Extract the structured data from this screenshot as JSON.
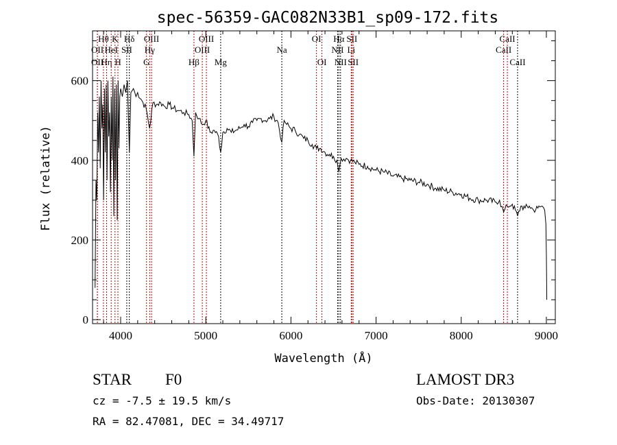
{
  "chart_data": {
    "type": "line",
    "title": "spec-56359-GAC082N33B1_sp09-172.fits",
    "xlabel": "Wavelength (Å)",
    "ylabel": "Flux (relative)",
    "xlim": [
      3670,
      9105
    ],
    "ylim": [
      -10,
      725
    ],
    "xticks": [
      4000,
      5000,
      6000,
      7000,
      8000,
      9000
    ],
    "yticks": [
      0,
      200,
      400,
      600
    ],
    "grid": false,
    "series": [
      {
        "name": "spectrum",
        "x": [
          3700,
          3710,
          3720,
          3730,
          3740,
          3750,
          3760,
          3770,
          3780,
          3790,
          3800,
          3810,
          3820,
          3830,
          3840,
          3850,
          3860,
          3870,
          3880,
          3890,
          3900,
          3910,
          3920,
          3930,
          3940,
          3950,
          3960,
          3970,
          3980,
          3990,
          4000,
          4020,
          4040,
          4060,
          4080,
          4102,
          4120,
          4150,
          4180,
          4200,
          4250,
          4300,
          4340,
          4380,
          4420,
          4470,
          4520,
          4570,
          4620,
          4680,
          4740,
          4800,
          4840,
          4861,
          4880,
          4920,
          4960,
          5000,
          5050,
          5100,
          5150,
          5175,
          5200,
          5250,
          5300,
          5350,
          5400,
          5450,
          5500,
          5550,
          5600,
          5650,
          5700,
          5750,
          5800,
          5850,
          5893,
          5920,
          5950,
          6000,
          6050,
          6100,
          6150,
          6200,
          6250,
          6300,
          6350,
          6400,
          6450,
          6500,
          6540,
          6563,
          6590,
          6650,
          6700,
          6750,
          6800,
          6900,
          7000,
          7100,
          7200,
          7300,
          7400,
          7500,
          7600,
          7700,
          7800,
          7900,
          8000,
          8100,
          8200,
          8300,
          8400,
          8450,
          8498,
          8542,
          8600,
          8662,
          8700,
          8750,
          8800,
          8850,
          8900,
          8950,
          8980,
          8995,
          9000,
          9005
        ],
        "y": [
          80,
          350,
          300,
          520,
          420,
          560,
          380,
          600,
          480,
          540,
          300,
          580,
          420,
          590,
          350,
          600,
          460,
          520,
          320,
          560,
          400,
          610,
          260,
          580,
          350,
          590,
          250,
          600,
          430,
          560,
          580,
          560,
          590,
          570,
          600,
          420,
          570,
          580,
          560,
          570,
          550,
          530,
          480,
          545,
          540,
          545,
          535,
          540,
          530,
          525,
          520,
          515,
          500,
          410,
          520,
          505,
          490,
          500,
          470,
          475,
          460,
          420,
          470,
          480,
          470,
          475,
          480,
          490,
          485,
          495,
          500,
          505,
          500,
          505,
          510,
          495,
          445,
          500,
          490,
          480,
          475,
          465,
          455,
          450,
          440,
          430,
          430,
          420,
          415,
          410,
          400,
          370,
          405,
          405,
          400,
          395,
          390,
          385,
          375,
          370,
          360,
          355,
          350,
          345,
          340,
          330,
          325,
          320,
          315,
          305,
          300,
          300,
          295,
          300,
          270,
          285,
          290,
          260,
          285,
          280,
          285,
          275,
          280,
          285,
          275,
          240,
          160,
          50
        ]
      }
    ],
    "lines": [
      {
        "label": "OII",
        "wl": 3727,
        "row": 2,
        "color": "#c00000"
      },
      {
        "label": "OII",
        "wl": 3727,
        "row": 3,
        "color": "#c00000"
      },
      {
        "label": "Hθ",
        "wl": 3798,
        "row": 1,
        "color": "#c00000"
      },
      {
        "label": "Hη",
        "wl": 3835,
        "row": 3,
        "color": "#c00000"
      },
      {
        "label": "HeI",
        "wl": 3889,
        "row": 2,
        "color": "#c00000"
      },
      {
        "label": "K",
        "wl": 3934,
        "row": 1,
        "color": "#c00000"
      },
      {
        "label": "H",
        "wl": 3968,
        "row": 3,
        "color": "#c00000"
      },
      {
        "label": "SII",
        "wl": 4072,
        "row": 2,
        "color": "#000000"
      },
      {
        "label": "Hδ",
        "wl": 4102,
        "row": 1,
        "color": "#000000"
      },
      {
        "label": "G",
        "wl": 4304,
        "row": 3,
        "color": "#c00000"
      },
      {
        "label": "Hγ",
        "wl": 4341,
        "row": 2,
        "color": "#c00000"
      },
      {
        "label": "OIII",
        "wl": 4363,
        "row": 1,
        "color": "#c00000"
      },
      {
        "label": "Hβ",
        "wl": 4861,
        "row": 3,
        "color": "#c00000"
      },
      {
        "label": "OIII",
        "wl": 4959,
        "row": 2,
        "color": "#c00000"
      },
      {
        "label": "OIII",
        "wl": 5007,
        "row": 1,
        "color": "#c00000"
      },
      {
        "label": "Mg",
        "wl": 5175,
        "row": 3,
        "color": "#000000"
      },
      {
        "label": "Na",
        "wl": 5893,
        "row": 2,
        "color": "#000000"
      },
      {
        "label": "OI",
        "wl": 6300,
        "row": 1,
        "color": "#c00000"
      },
      {
        "label": "OI",
        "wl": 6364,
        "row": 3,
        "color": "#c00000"
      },
      {
        "label": "NII",
        "wl": 6548,
        "row": 2,
        "color": "#000000"
      },
      {
        "label": "Hα",
        "wl": 6563,
        "row": 1,
        "color": "#000000"
      },
      {
        "label": "NII",
        "wl": 6583,
        "row": 3,
        "color": "#000000"
      },
      {
        "label": "Li",
        "wl": 6708,
        "row": 2,
        "color": "#c00000"
      },
      {
        "label": "SII",
        "wl": 6716,
        "row": 1,
        "color": "#c00000"
      },
      {
        "label": "SII",
        "wl": 6731,
        "row": 3,
        "color": "#c00000"
      },
      {
        "label": "CaII",
        "wl": 8498,
        "row": 2,
        "color": "#c00000"
      },
      {
        "label": "CaII",
        "wl": 8542,
        "row": 1,
        "color": "#c00000"
      },
      {
        "label": "CaII",
        "wl": 8662,
        "row": 3,
        "color": "#000000"
      }
    ]
  },
  "info": {
    "class": "STAR",
    "subclass": "F0",
    "survey": "LAMOST DR3",
    "cz": "cz = -7.5 ± 19.5 km/s",
    "obs_date": "Obs-Date: 20130307",
    "coords": "RA =  82.47081, DEC =  34.49717"
  }
}
